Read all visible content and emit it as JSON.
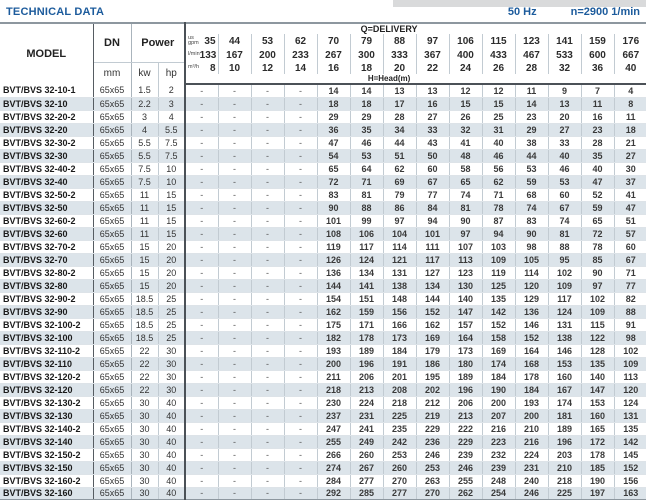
{
  "page": {
    "title": "TECHNICAL DATA",
    "frequency": "50 Hz",
    "speed": "n=2900 1/min"
  },
  "colors": {
    "accent": "#1c5b9c",
    "row_stripe": "#dce4ea",
    "dark_border": "#4b5157"
  },
  "table": {
    "headers": {
      "model": "MODEL",
      "dn": "DN",
      "dn_unit": "mm",
      "power": "Power",
      "power_kw": "kw",
      "power_hp": "hp",
      "delivery": "Q=DELIVERY",
      "head": "H=Head(m)",
      "unit_gpm": "us gpm",
      "unit_lmin": "l/min",
      "unit_m3h": "m³/h"
    },
    "delivery_gpm": [
      "35",
      "44",
      "53",
      "62",
      "70",
      "79",
      "88",
      "97",
      "106",
      "115",
      "123",
      "141",
      "159",
      "176"
    ],
    "delivery_lmin": [
      "133",
      "167",
      "200",
      "233",
      "267",
      "300",
      "333",
      "367",
      "400",
      "433",
      "467",
      "533",
      "600",
      "667"
    ],
    "delivery_m3h": [
      "8",
      "10",
      "12",
      "14",
      "16",
      "18",
      "20",
      "22",
      "24",
      "26",
      "28",
      "32",
      "36",
      "40"
    ],
    "rows": [
      {
        "model": "BVT/BVS 32-10-1",
        "dn": "65x65",
        "kw": "1.5",
        "hp": "2",
        "head": [
          "-",
          "-",
          "-",
          "-",
          "14",
          "14",
          "13",
          "13",
          "12",
          "12",
          "11",
          "9",
          "7",
          "4"
        ]
      },
      {
        "model": "BVT/BVS 32-10",
        "dn": "65x65",
        "kw": "2.2",
        "hp": "3",
        "head": [
          "-",
          "-",
          "-",
          "-",
          "18",
          "18",
          "17",
          "16",
          "15",
          "15",
          "14",
          "13",
          "11",
          "8"
        ]
      },
      {
        "model": "BVT/BVS 32-20-2",
        "dn": "65x65",
        "kw": "3",
        "hp": "4",
        "head": [
          "-",
          "-",
          "-",
          "-",
          "29",
          "29",
          "28",
          "27",
          "26",
          "25",
          "23",
          "20",
          "16",
          "11"
        ]
      },
      {
        "model": "BVT/BVS 32-20",
        "dn": "65x65",
        "kw": "4",
        "hp": "5.5",
        "head": [
          "-",
          "-",
          "-",
          "-",
          "36",
          "35",
          "34",
          "33",
          "32",
          "31",
          "29",
          "27",
          "23",
          "18"
        ]
      },
      {
        "model": "BVT/BVS 32-30-2",
        "dn": "65x65",
        "kw": "5.5",
        "hp": "7.5",
        "head": [
          "-",
          "-",
          "-",
          "-",
          "47",
          "46",
          "44",
          "43",
          "41",
          "40",
          "38",
          "33",
          "28",
          "21"
        ]
      },
      {
        "model": "BVT/BVS 32-30",
        "dn": "65x65",
        "kw": "5.5",
        "hp": "7.5",
        "head": [
          "-",
          "-",
          "-",
          "-",
          "54",
          "53",
          "51",
          "50",
          "48",
          "46",
          "44",
          "40",
          "35",
          "27"
        ]
      },
      {
        "model": "BVT/BVS 32-40-2",
        "dn": "65x65",
        "kw": "7.5",
        "hp": "10",
        "head": [
          "-",
          "-",
          "-",
          "-",
          "65",
          "64",
          "62",
          "60",
          "58",
          "56",
          "53",
          "46",
          "40",
          "30"
        ]
      },
      {
        "model": "BVT/BVS 32-40",
        "dn": "65x65",
        "kw": "7.5",
        "hp": "10",
        "head": [
          "-",
          "-",
          "-",
          "-",
          "72",
          "71",
          "69",
          "67",
          "65",
          "62",
          "59",
          "53",
          "47",
          "37"
        ]
      },
      {
        "model": "BVT/BVS 32-50-2",
        "dn": "65x65",
        "kw": "11",
        "hp": "15",
        "head": [
          "-",
          "-",
          "-",
          "-",
          "83",
          "81",
          "79",
          "77",
          "74",
          "71",
          "68",
          "60",
          "52",
          "41"
        ]
      },
      {
        "model": "BVT/BVS 32-50",
        "dn": "65x65",
        "kw": "11",
        "hp": "15",
        "head": [
          "-",
          "-",
          "-",
          "-",
          "90",
          "88",
          "86",
          "84",
          "81",
          "78",
          "74",
          "67",
          "59",
          "47"
        ]
      },
      {
        "model": "BVT/BVS 32-60-2",
        "dn": "65x65",
        "kw": "11",
        "hp": "15",
        "head": [
          "-",
          "-",
          "-",
          "-",
          "101",
          "99",
          "97",
          "94",
          "90",
          "87",
          "83",
          "74",
          "65",
          "51"
        ]
      },
      {
        "model": "BVT/BVS 32-60",
        "dn": "65x65",
        "kw": "11",
        "hp": "15",
        "head": [
          "-",
          "-",
          "-",
          "-",
          "108",
          "106",
          "104",
          "101",
          "97",
          "94",
          "90",
          "81",
          "72",
          "57"
        ]
      },
      {
        "model": "BVT/BVS 32-70-2",
        "dn": "65x65",
        "kw": "15",
        "hp": "20",
        "head": [
          "-",
          "-",
          "-",
          "-",
          "119",
          "117",
          "114",
          "111",
          "107",
          "103",
          "98",
          "88",
          "78",
          "60"
        ]
      },
      {
        "model": "BVT/BVS 32-70",
        "dn": "65x65",
        "kw": "15",
        "hp": "20",
        "head": [
          "-",
          "-",
          "-",
          "-",
          "126",
          "124",
          "121",
          "117",
          "113",
          "109",
          "105",
          "95",
          "85",
          "67"
        ]
      },
      {
        "model": "BVT/BVS 32-80-2",
        "dn": "65x65",
        "kw": "15",
        "hp": "20",
        "head": [
          "-",
          "-",
          "-",
          "-",
          "136",
          "134",
          "131",
          "127",
          "123",
          "119",
          "114",
          "102",
          "90",
          "71"
        ]
      },
      {
        "model": "BVT/BVS 32-80",
        "dn": "65x65",
        "kw": "15",
        "hp": "20",
        "head": [
          "-",
          "-",
          "-",
          "-",
          "144",
          "141",
          "138",
          "134",
          "130",
          "125",
          "120",
          "109",
          "97",
          "77"
        ]
      },
      {
        "model": "BVT/BVS 32-90-2",
        "dn": "65x65",
        "kw": "18.5",
        "hp": "25",
        "head": [
          "-",
          "-",
          "-",
          "-",
          "154",
          "151",
          "148",
          "144",
          "140",
          "135",
          "129",
          "117",
          "102",
          "82"
        ]
      },
      {
        "model": "BVT/BVS 32-90",
        "dn": "65x65",
        "kw": "18.5",
        "hp": "25",
        "head": [
          "-",
          "-",
          "-",
          "-",
          "162",
          "159",
          "156",
          "152",
          "147",
          "142",
          "136",
          "124",
          "109",
          "88"
        ]
      },
      {
        "model": "BVT/BVS 32-100-2",
        "dn": "65x65",
        "kw": "18.5",
        "hp": "25",
        "head": [
          "-",
          "-",
          "-",
          "-",
          "175",
          "171",
          "166",
          "162",
          "157",
          "152",
          "146",
          "131",
          "115",
          "91"
        ]
      },
      {
        "model": "BVT/BVS 32-100",
        "dn": "65x65",
        "kw": "18.5",
        "hp": "25",
        "head": [
          "-",
          "-",
          "-",
          "-",
          "182",
          "178",
          "173",
          "169",
          "164",
          "158",
          "152",
          "138",
          "122",
          "98"
        ]
      },
      {
        "model": "BVT/BVS 32-110-2",
        "dn": "65x65",
        "kw": "22",
        "hp": "30",
        "head": [
          "-",
          "-",
          "-",
          "-",
          "193",
          "189",
          "184",
          "179",
          "173",
          "169",
          "164",
          "146",
          "128",
          "102"
        ]
      },
      {
        "model": "BVT/BVS 32-110",
        "dn": "65x65",
        "kw": "22",
        "hp": "30",
        "head": [
          "-",
          "-",
          "-",
          "-",
          "200",
          "196",
          "191",
          "186",
          "180",
          "174",
          "168",
          "153",
          "135",
          "109"
        ]
      },
      {
        "model": "BVT/BVS 32-120-2",
        "dn": "65x65",
        "kw": "22",
        "hp": "30",
        "head": [
          "-",
          "-",
          "-",
          "-",
          "211",
          "206",
          "201",
          "195",
          "189",
          "184",
          "178",
          "160",
          "140",
          "113"
        ]
      },
      {
        "model": "BVT/BVS 32-120",
        "dn": "65x65",
        "kw": "22",
        "hp": "30",
        "head": [
          "-",
          "-",
          "-",
          "-",
          "218",
          "213",
          "208",
          "202",
          "196",
          "190",
          "184",
          "167",
          "147",
          "120"
        ]
      },
      {
        "model": "BVT/BVS 32-130-2",
        "dn": "65x65",
        "kw": "30",
        "hp": "40",
        "head": [
          "-",
          "-",
          "-",
          "-",
          "230",
          "224",
          "218",
          "212",
          "206",
          "200",
          "193",
          "174",
          "153",
          "124"
        ]
      },
      {
        "model": "BVT/BVS 32-130",
        "dn": "65x65",
        "kw": "30",
        "hp": "40",
        "head": [
          "-",
          "-",
          "-",
          "-",
          "237",
          "231",
          "225",
          "219",
          "213",
          "207",
          "200",
          "181",
          "160",
          "131"
        ]
      },
      {
        "model": "BVT/BVS 32-140-2",
        "dn": "65x65",
        "kw": "30",
        "hp": "40",
        "head": [
          "-",
          "-",
          "-",
          "-",
          "247",
          "241",
          "235",
          "229",
          "222",
          "216",
          "210",
          "189",
          "165",
          "135"
        ]
      },
      {
        "model": "BVT/BVS 32-140",
        "dn": "65x65",
        "kw": "30",
        "hp": "40",
        "head": [
          "-",
          "-",
          "-",
          "-",
          "255",
          "249",
          "242",
          "236",
          "229",
          "223",
          "216",
          "196",
          "172",
          "142"
        ]
      },
      {
        "model": "BVT/BVS 32-150-2",
        "dn": "65x65",
        "kw": "30",
        "hp": "40",
        "head": [
          "-",
          "-",
          "-",
          "-",
          "266",
          "260",
          "253",
          "246",
          "239",
          "232",
          "224",
          "203",
          "178",
          "145"
        ]
      },
      {
        "model": "BVT/BVS 32-150",
        "dn": "65x65",
        "kw": "30",
        "hp": "40",
        "head": [
          "-",
          "-",
          "-",
          "-",
          "274",
          "267",
          "260",
          "253",
          "246",
          "239",
          "231",
          "210",
          "185",
          "152"
        ]
      },
      {
        "model": "BVT/BVS 32-160-2",
        "dn": "65x65",
        "kw": "30",
        "hp": "40",
        "head": [
          "-",
          "-",
          "-",
          "-",
          "284",
          "277",
          "270",
          "263",
          "255",
          "248",
          "240",
          "218",
          "190",
          "156"
        ]
      },
      {
        "model": "BVT/BVS 32-160",
        "dn": "65x65",
        "kw": "30",
        "hp": "40",
        "head": [
          "-",
          "-",
          "-",
          "-",
          "292",
          "285",
          "277",
          "270",
          "262",
          "254",
          "246",
          "225",
          "197",
          "163"
        ]
      }
    ]
  }
}
